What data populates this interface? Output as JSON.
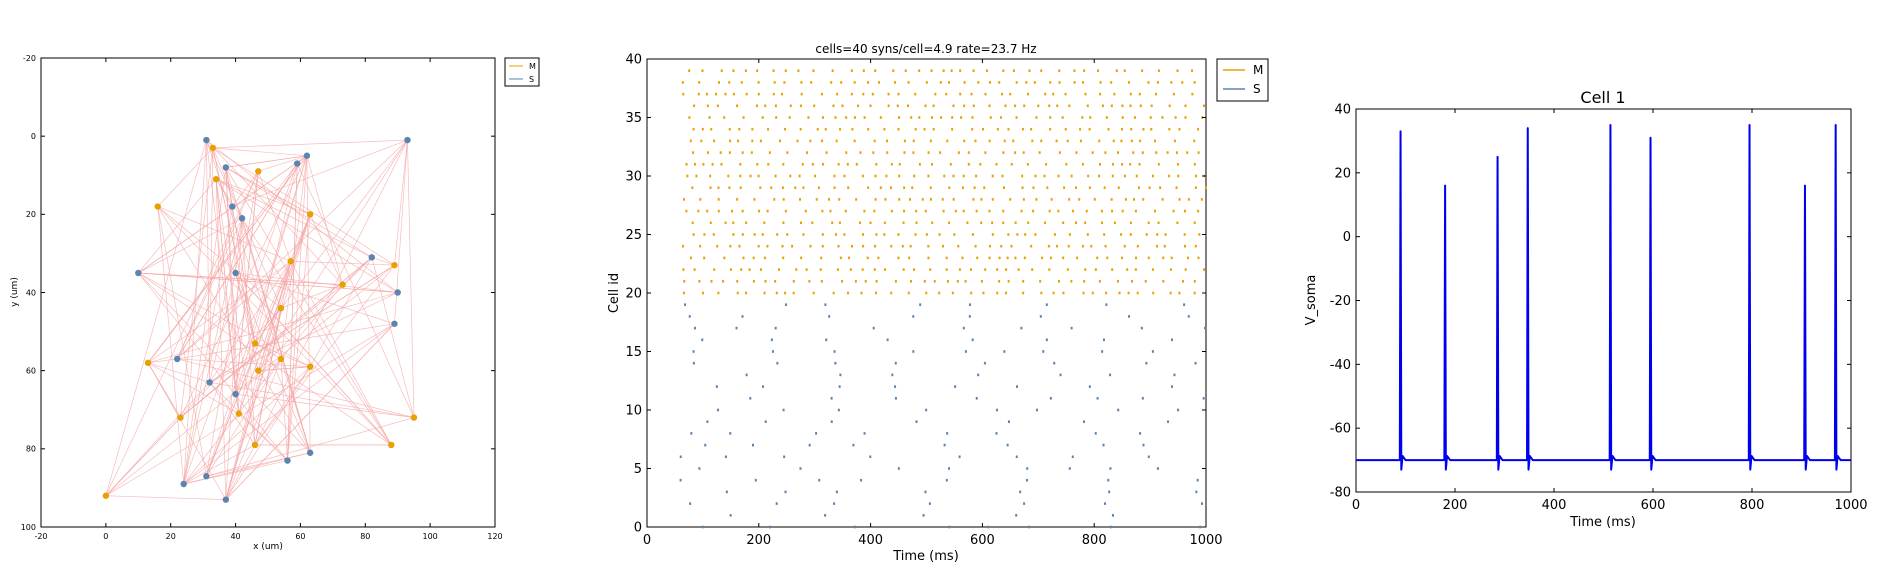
{
  "chart_data": [
    {
      "type": "scatter",
      "subtype": "network-connectivity",
      "title": "",
      "xlabel": "x (um)",
      "ylabel": "y (um)",
      "xlim": [
        -20,
        120
      ],
      "ylim": [
        100,
        -20
      ],
      "x_ticks": [
        -20,
        0,
        20,
        40,
        60,
        80,
        100,
        120
      ],
      "y_ticks": [
        -20,
        0,
        20,
        40,
        60,
        80,
        100
      ],
      "legend": {
        "placement": "outside-top-right",
        "entries": [
          "M",
          "S"
        ]
      },
      "connection_color": "#f4a6a6",
      "series": [
        {
          "name": "M",
          "color": "#e8a100",
          "points": [
            [
              33,
              3
            ],
            [
              34,
              11
            ],
            [
              47,
              9
            ],
            [
              16,
              18
            ],
            [
              63,
              20
            ],
            [
              57,
              32
            ],
            [
              89,
              33
            ],
            [
              73,
              38
            ],
            [
              54,
              44
            ],
            [
              13,
              58
            ],
            [
              46,
              53
            ],
            [
              54,
              57
            ],
            [
              47,
              60
            ],
            [
              63,
              59
            ],
            [
              41,
              71
            ],
            [
              23,
              72
            ],
            [
              95,
              72
            ],
            [
              46,
              79
            ],
            [
              88,
              79
            ],
            [
              0,
              92
            ]
          ]
        },
        {
          "name": "S",
          "color": "#5b84b1",
          "points": [
            [
              31,
              1
            ],
            [
              93,
              1
            ],
            [
              37,
              8
            ],
            [
              62,
              5
            ],
            [
              59,
              7
            ],
            [
              39,
              18
            ],
            [
              42,
              21
            ],
            [
              82,
              31
            ],
            [
              10,
              35
            ],
            [
              40,
              35
            ],
            [
              90,
              40
            ],
            [
              89,
              48
            ],
            [
              22,
              57
            ],
            [
              32,
              63
            ],
            [
              40,
              66
            ],
            [
              31,
              87
            ],
            [
              24,
              89
            ],
            [
              56,
              83
            ],
            [
              63,
              81
            ],
            [
              37,
              93
            ]
          ]
        }
      ]
    },
    {
      "type": "scatter",
      "subtype": "raster",
      "title": "cells=40 syns/cell=4.9 rate=23.7 Hz",
      "xlabel": "Time (ms)",
      "ylabel": "Cell id",
      "xlim": [
        0,
        1000
      ],
      "ylim": [
        0,
        40
      ],
      "x_ticks": [
        0,
        200,
        400,
        600,
        800,
        1000
      ],
      "y_ticks": [
        0,
        5,
        10,
        15,
        20,
        25,
        30,
        35,
        40
      ],
      "legend": {
        "placement": "outside-top-right",
        "entries": [
          "M",
          "S"
        ]
      },
      "series": [
        {
          "name": "M",
          "color": "#e8a100",
          "cell_range": [
            20,
            39
          ],
          "mean_rate_hz": 40
        },
        {
          "name": "S",
          "color": "#5b84b1",
          "cell_range": [
            0,
            19
          ],
          "mean_rate_hz": 8
        }
      ]
    },
    {
      "type": "line",
      "title": "Cell 1",
      "xlabel": "Time (ms)",
      "ylabel": "V_soma",
      "xlim": [
        0,
        1000
      ],
      "ylim": [
        -80,
        40
      ],
      "x_ticks": [
        0,
        200,
        400,
        600,
        800,
        1000
      ],
      "y_ticks": [
        -80,
        -60,
        -40,
        -20,
        0,
        20,
        40
      ],
      "color": "#0000ee",
      "resting_potential": -70,
      "spikes": [
        [
          90,
          33
        ],
        [
          180,
          16
        ],
        [
          286,
          25
        ],
        [
          347,
          34
        ],
        [
          514,
          35
        ],
        [
          595,
          31
        ],
        [
          795,
          35
        ],
        [
          907,
          16
        ],
        [
          969,
          35
        ]
      ]
    }
  ]
}
